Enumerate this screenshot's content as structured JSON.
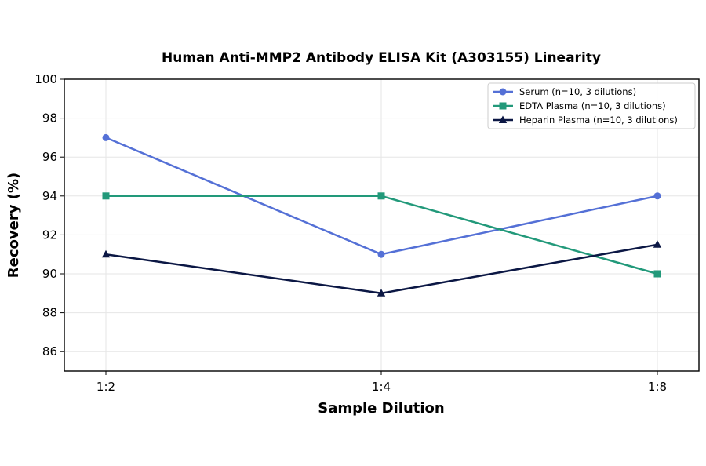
{
  "chart_data": {
    "type": "line",
    "title": "Human Anti-MMP2 Antibody ELISA Kit (A303155) Linearity",
    "xlabel": "Sample Dilution",
    "ylabel": "Recovery (%)",
    "categories": [
      "1:2",
      "1:4",
      "1:8"
    ],
    "ylim": [
      85,
      100
    ],
    "yticks": [
      86,
      88,
      90,
      92,
      94,
      96,
      98,
      100
    ],
    "grid": true,
    "legend_position": "top-right",
    "series": [
      {
        "name": "Serum (n=10, 3 dilutions)",
        "values": [
          97,
          91,
          94
        ],
        "color": "#5470d6",
        "marker": "circle"
      },
      {
        "name": "EDTA Plasma (n=10, 3 dilutions)",
        "values": [
          94,
          94,
          90
        ],
        "color": "#22997a",
        "marker": "square"
      },
      {
        "name": "Heparin Plasma (n=10, 3 dilutions)",
        "values": [
          91,
          89,
          91.5
        ],
        "color": "#0b1744",
        "marker": "triangle"
      }
    ]
  }
}
